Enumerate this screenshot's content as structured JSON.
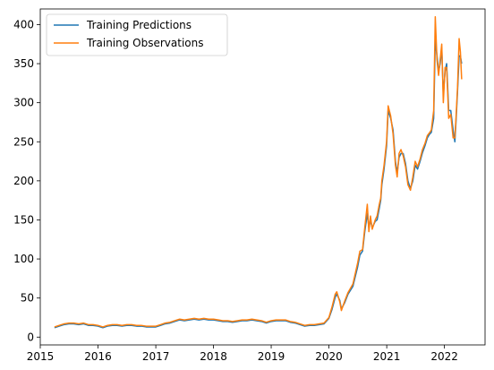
{
  "chart_data": {
    "type": "line",
    "title": "",
    "xlabel": "",
    "ylabel": "",
    "xlim": [
      "2015-01-01",
      "2022-09-15"
    ],
    "ylim": [
      -10,
      420
    ],
    "x_ticks": [
      "2015",
      "2016",
      "2017",
      "2018",
      "2019",
      "2020",
      "2021",
      "2022"
    ],
    "y_ticks": [
      0,
      50,
      100,
      150,
      200,
      250,
      300,
      350,
      400
    ],
    "grid": false,
    "legend": {
      "placement": "top-left",
      "entries": [
        "Training Predictions",
        "Training Observations"
      ]
    },
    "series": [
      {
        "name": "Training Predictions",
        "color": "#1f77b4",
        "x": [
          "2015-04-01",
          "2015-05-01",
          "2015-06-01",
          "2015-07-01",
          "2015-08-01",
          "2015-09-01",
          "2015-10-01",
          "2015-11-01",
          "2015-12-01",
          "2016-01-01",
          "2016-02-01",
          "2016-03-01",
          "2016-04-01",
          "2016-05-01",
          "2016-06-01",
          "2016-07-01",
          "2016-08-01",
          "2016-09-01",
          "2016-10-01",
          "2016-11-01",
          "2016-12-01",
          "2017-01-01",
          "2017-02-01",
          "2017-03-01",
          "2017-04-01",
          "2017-05-01",
          "2017-06-01",
          "2017-07-01",
          "2017-08-01",
          "2017-09-01",
          "2017-10-01",
          "2017-11-01",
          "2017-12-01",
          "2018-01-01",
          "2018-02-01",
          "2018-03-01",
          "2018-04-01",
          "2018-05-01",
          "2018-06-01",
          "2018-07-01",
          "2018-08-01",
          "2018-09-01",
          "2018-10-01",
          "2018-11-01",
          "2018-12-01",
          "2019-01-01",
          "2019-02-01",
          "2019-03-01",
          "2019-04-01",
          "2019-05-01",
          "2019-06-01",
          "2019-07-01",
          "2019-08-01",
          "2019-09-01",
          "2019-10-01",
          "2019-11-01",
          "2019-12-01",
          "2020-01-01",
          "2020-01-20",
          "2020-02-10",
          "2020-02-20",
          "2020-03-10",
          "2020-03-20",
          "2020-04-10",
          "2020-05-01",
          "2020-06-01",
          "2020-07-01",
          "2020-07-15",
          "2020-08-01",
          "2020-08-15",
          "2020-08-31",
          "2020-09-10",
          "2020-09-20",
          "2020-10-01",
          "2020-10-20",
          "2020-11-01",
          "2020-11-15",
          "2020-11-24",
          "2020-12-01",
          "2020-12-15",
          "2020-12-31",
          "2021-01-10",
          "2021-01-26",
          "2021-02-10",
          "2021-02-25",
          "2021-03-08",
          "2021-03-20",
          "2021-04-01",
          "2021-04-15",
          "2021-04-30",
          "2021-05-15",
          "2021-05-31",
          "2021-06-15",
          "2021-06-30",
          "2021-07-15",
          "2021-07-31",
          "2021-08-15",
          "2021-08-31",
          "2021-09-15",
          "2021-09-30",
          "2021-10-10",
          "2021-10-25",
          "2021-11-04",
          "2021-11-15",
          "2021-11-25",
          "2021-12-05",
          "2021-12-15",
          "2021-12-25",
          "2022-01-05",
          "2022-01-15",
          "2022-01-28",
          "2022-02-10",
          "2022-02-25",
          "2022-03-08",
          "2022-03-15",
          "2022-03-25",
          "2022-04-04",
          "2022-04-12",
          "2022-04-20"
        ],
        "y": [
          12,
          14,
          16,
          17,
          17,
          16,
          17,
          15,
          15,
          14,
          12,
          14,
          15,
          15,
          14,
          15,
          15,
          14,
          14,
          13,
          13,
          13,
          15,
          17,
          18,
          20,
          22,
          21,
          22,
          23,
          22,
          23,
          22,
          22,
          21,
          20,
          20,
          19,
          20,
          21,
          21,
          22,
          21,
          20,
          18,
          20,
          21,
          21,
          21,
          19,
          18,
          16,
          14,
          15,
          15,
          16,
          17,
          24,
          35,
          51,
          55,
          47,
          36,
          44,
          55,
          65,
          90,
          105,
          110,
          135,
          158,
          140,
          150,
          140,
          148,
          150,
          165,
          175,
          195,
          215,
          245,
          290,
          280,
          265,
          225,
          210,
          230,
          235,
          235,
          222,
          200,
          190,
          200,
          220,
          215,
          225,
          236,
          245,
          255,
          260,
          262,
          280,
          380,
          360,
          340,
          350,
          370,
          310,
          340,
          350,
          290,
          290,
          265,
          250,
          275,
          315,
          360,
          360,
          350
        ]
      },
      {
        "name": "Training Observations",
        "color": "#ff7f0e",
        "x": [
          "2015-04-01",
          "2015-05-01",
          "2015-06-01",
          "2015-07-01",
          "2015-08-01",
          "2015-09-01",
          "2015-10-01",
          "2015-11-01",
          "2015-12-01",
          "2016-01-01",
          "2016-02-01",
          "2016-03-01",
          "2016-04-01",
          "2016-05-01",
          "2016-06-01",
          "2016-07-01",
          "2016-08-01",
          "2016-09-01",
          "2016-10-01",
          "2016-11-01",
          "2016-12-01",
          "2017-01-01",
          "2017-02-01",
          "2017-03-01",
          "2017-04-01",
          "2017-05-01",
          "2017-06-01",
          "2017-07-01",
          "2017-08-01",
          "2017-09-01",
          "2017-10-01",
          "2017-11-01",
          "2017-12-01",
          "2018-01-01",
          "2018-02-01",
          "2018-03-01",
          "2018-04-01",
          "2018-05-01",
          "2018-06-01",
          "2018-07-01",
          "2018-08-01",
          "2018-09-01",
          "2018-10-01",
          "2018-11-01",
          "2018-12-01",
          "2019-01-01",
          "2019-02-01",
          "2019-03-01",
          "2019-04-01",
          "2019-05-01",
          "2019-06-01",
          "2019-07-01",
          "2019-08-01",
          "2019-09-01",
          "2019-10-01",
          "2019-11-01",
          "2019-12-01",
          "2020-01-01",
          "2020-01-20",
          "2020-02-10",
          "2020-02-20",
          "2020-03-10",
          "2020-03-20",
          "2020-04-10",
          "2020-05-01",
          "2020-06-01",
          "2020-07-01",
          "2020-07-15",
          "2020-08-01",
          "2020-08-15",
          "2020-08-31",
          "2020-09-10",
          "2020-09-20",
          "2020-10-01",
          "2020-10-20",
          "2020-11-01",
          "2020-11-15",
          "2020-11-24",
          "2020-12-01",
          "2020-12-15",
          "2020-12-31",
          "2021-01-10",
          "2021-01-26",
          "2021-02-10",
          "2021-02-25",
          "2021-03-08",
          "2021-03-20",
          "2021-04-01",
          "2021-04-15",
          "2021-04-30",
          "2021-05-15",
          "2021-05-31",
          "2021-06-15",
          "2021-06-30",
          "2021-07-15",
          "2021-07-31",
          "2021-08-15",
          "2021-08-31",
          "2021-09-15",
          "2021-09-30",
          "2021-10-10",
          "2021-10-25",
          "2021-11-04",
          "2021-11-15",
          "2021-11-25",
          "2021-12-05",
          "2021-12-15",
          "2021-12-25",
          "2022-01-05",
          "2022-01-15",
          "2022-01-28",
          "2022-02-10",
          "2022-02-25",
          "2022-03-08",
          "2022-03-15",
          "2022-03-25",
          "2022-04-04",
          "2022-04-12",
          "2022-04-20"
        ],
        "y": [
          13,
          15,
          17,
          18,
          18,
          17,
          18,
          16,
          16,
          15,
          13,
          15,
          16,
          16,
          15,
          16,
          16,
          15,
          15,
          14,
          14,
          14,
          16,
          18,
          19,
          21,
          23,
          22,
          23,
          24,
          23,
          24,
          23,
          23,
          22,
          21,
          21,
          20,
          21,
          22,
          22,
          23,
          22,
          21,
          19,
          21,
          22,
          22,
          22,
          20,
          19,
          17,
          15,
          16,
          16,
          17,
          18,
          25,
          38,
          55,
          58,
          45,
          34,
          46,
          57,
          68,
          95,
          110,
          112,
          140,
          170,
          135,
          155,
          138,
          150,
          155,
          170,
          178,
          200,
          220,
          250,
          296,
          283,
          260,
          220,
          205,
          235,
          240,
          232,
          218,
          195,
          188,
          205,
          225,
          218,
          228,
          240,
          248,
          258,
          262,
          265,
          290,
          410,
          355,
          335,
          355,
          375,
          300,
          345,
          345,
          280,
          285,
          255,
          255,
          280,
          320,
          382,
          365,
          330
        ]
      }
    ]
  }
}
